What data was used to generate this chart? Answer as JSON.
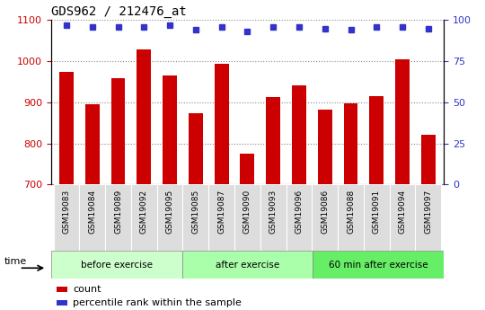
{
  "title": "GDS962 / 212476_at",
  "categories": [
    "GSM19083",
    "GSM19084",
    "GSM19089",
    "GSM19092",
    "GSM19095",
    "GSM19085",
    "GSM19087",
    "GSM19090",
    "GSM19093",
    "GSM19096",
    "GSM19086",
    "GSM19088",
    "GSM19091",
    "GSM19094",
    "GSM19097"
  ],
  "bar_values": [
    975,
    895,
    958,
    1028,
    965,
    873,
    993,
    775,
    912,
    942,
    882,
    898,
    916,
    1005,
    820
  ],
  "percentile_values": [
    97,
    96,
    96,
    96,
    97,
    94,
    96,
    93,
    96,
    96,
    95,
    94,
    96,
    96,
    95
  ],
  "bar_color": "#cc0000",
  "dot_color": "#3333cc",
  "ylim_left": [
    700,
    1100
  ],
  "ylim_right": [
    0,
    100
  ],
  "yticks_left": [
    700,
    800,
    900,
    1000,
    1100
  ],
  "yticks_right": [
    0,
    25,
    50,
    75,
    100
  ],
  "groups": [
    {
      "label": "before exercise",
      "start": 0,
      "end": 5,
      "color": "#ccffcc"
    },
    {
      "label": "after exercise",
      "start": 5,
      "end": 10,
      "color": "#aaffaa"
    },
    {
      "label": "60 min after exercise",
      "start": 10,
      "end": 15,
      "color": "#66ee66"
    }
  ],
  "xlabel_time": "time",
  "legend_count": "count",
  "legend_percentile": "percentile rank within the sample",
  "grid_color": "#888888",
  "bar_width": 0.55,
  "cell_bg": "#dddddd",
  "tick_label_color_left": "#cc0000",
  "tick_label_color_right": "#3333cc",
  "plot_bg": "#ffffff"
}
